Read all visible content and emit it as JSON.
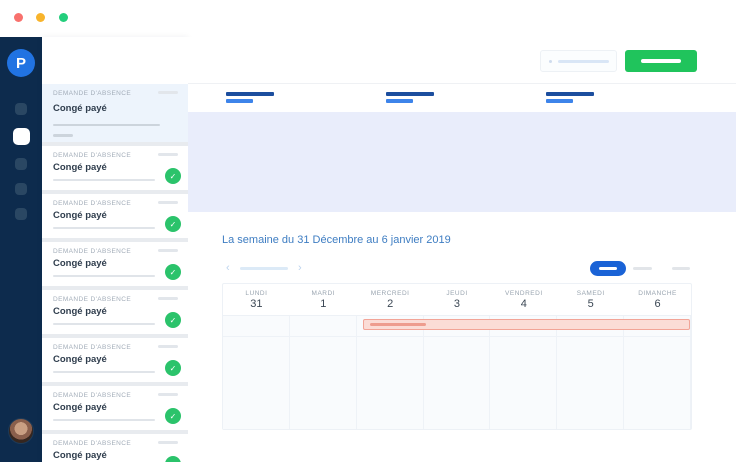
{
  "window": {
    "controls": [
      {
        "name": "close",
        "color": "#f8716d"
      },
      {
        "name": "minimize",
        "color": "#f8b42c"
      },
      {
        "name": "zoom",
        "color": "#23ce7c"
      }
    ]
  },
  "brand": {
    "logo_letter": "P"
  },
  "icons": {
    "check": "✓",
    "chevron_left": "‹",
    "chevron_right": "›"
  },
  "sidebar": {
    "nav_items": [
      {
        "active": false
      },
      {
        "active": true
      },
      {
        "active": false
      },
      {
        "active": false
      },
      {
        "active": false
      }
    ]
  },
  "absence_list": {
    "cards": [
      {
        "label": "DEMANDE D'ABSENCE",
        "title": "Congé payé",
        "selected": true,
        "approved": false
      },
      {
        "label": "DEMANDE D'ABSENCE",
        "title": "Congé payé",
        "selected": false,
        "approved": true
      },
      {
        "label": "DEMANDE D'ABSENCE",
        "title": "Congé payé",
        "selected": false,
        "approved": true
      },
      {
        "label": "DEMANDE D'ABSENCE",
        "title": "Congé payé",
        "selected": false,
        "approved": true
      },
      {
        "label": "DEMANDE D'ABSENCE",
        "title": "Congé payé",
        "selected": false,
        "approved": true
      },
      {
        "label": "DEMANDE D'ABSENCE",
        "title": "Congé payé",
        "selected": false,
        "approved": true
      },
      {
        "label": "DEMANDE D'ABSENCE",
        "title": "Congé payé",
        "selected": false,
        "approved": true
      },
      {
        "label": "DEMANDE D'ABSENCE",
        "title": "Congé payé",
        "selected": false,
        "approved": true
      }
    ]
  },
  "main": {
    "week_title": "La semaine du 31 Décembre au 6 janvier 2019",
    "calendar": {
      "days": [
        {
          "name": "LUNDI",
          "number": "31"
        },
        {
          "name": "MARDI",
          "number": "1"
        },
        {
          "name": "MERCREDI",
          "number": "2"
        },
        {
          "name": "JEUDI",
          "number": "3"
        },
        {
          "name": "VENDREDI",
          "number": "4"
        },
        {
          "name": "SAMEDI",
          "number": "5"
        },
        {
          "name": "DIMANCHE",
          "number": "6"
        }
      ],
      "event": {
        "start_day_index": 2,
        "end_day_index": 6
      }
    }
  },
  "colors": {
    "navy_rail": "#0d2b4d",
    "brand_blue": "#2173e2",
    "success_green": "#2bc36b",
    "button_green": "#20c45c",
    "hero_lavender": "#e9edfb",
    "title_blue": "#3e7dc2",
    "pill_blue": "#1a63d6",
    "event_pink_bg": "#fbdcd6",
    "event_pink_border": "#f2a497",
    "selected_card_bg": "#edf4fc"
  }
}
